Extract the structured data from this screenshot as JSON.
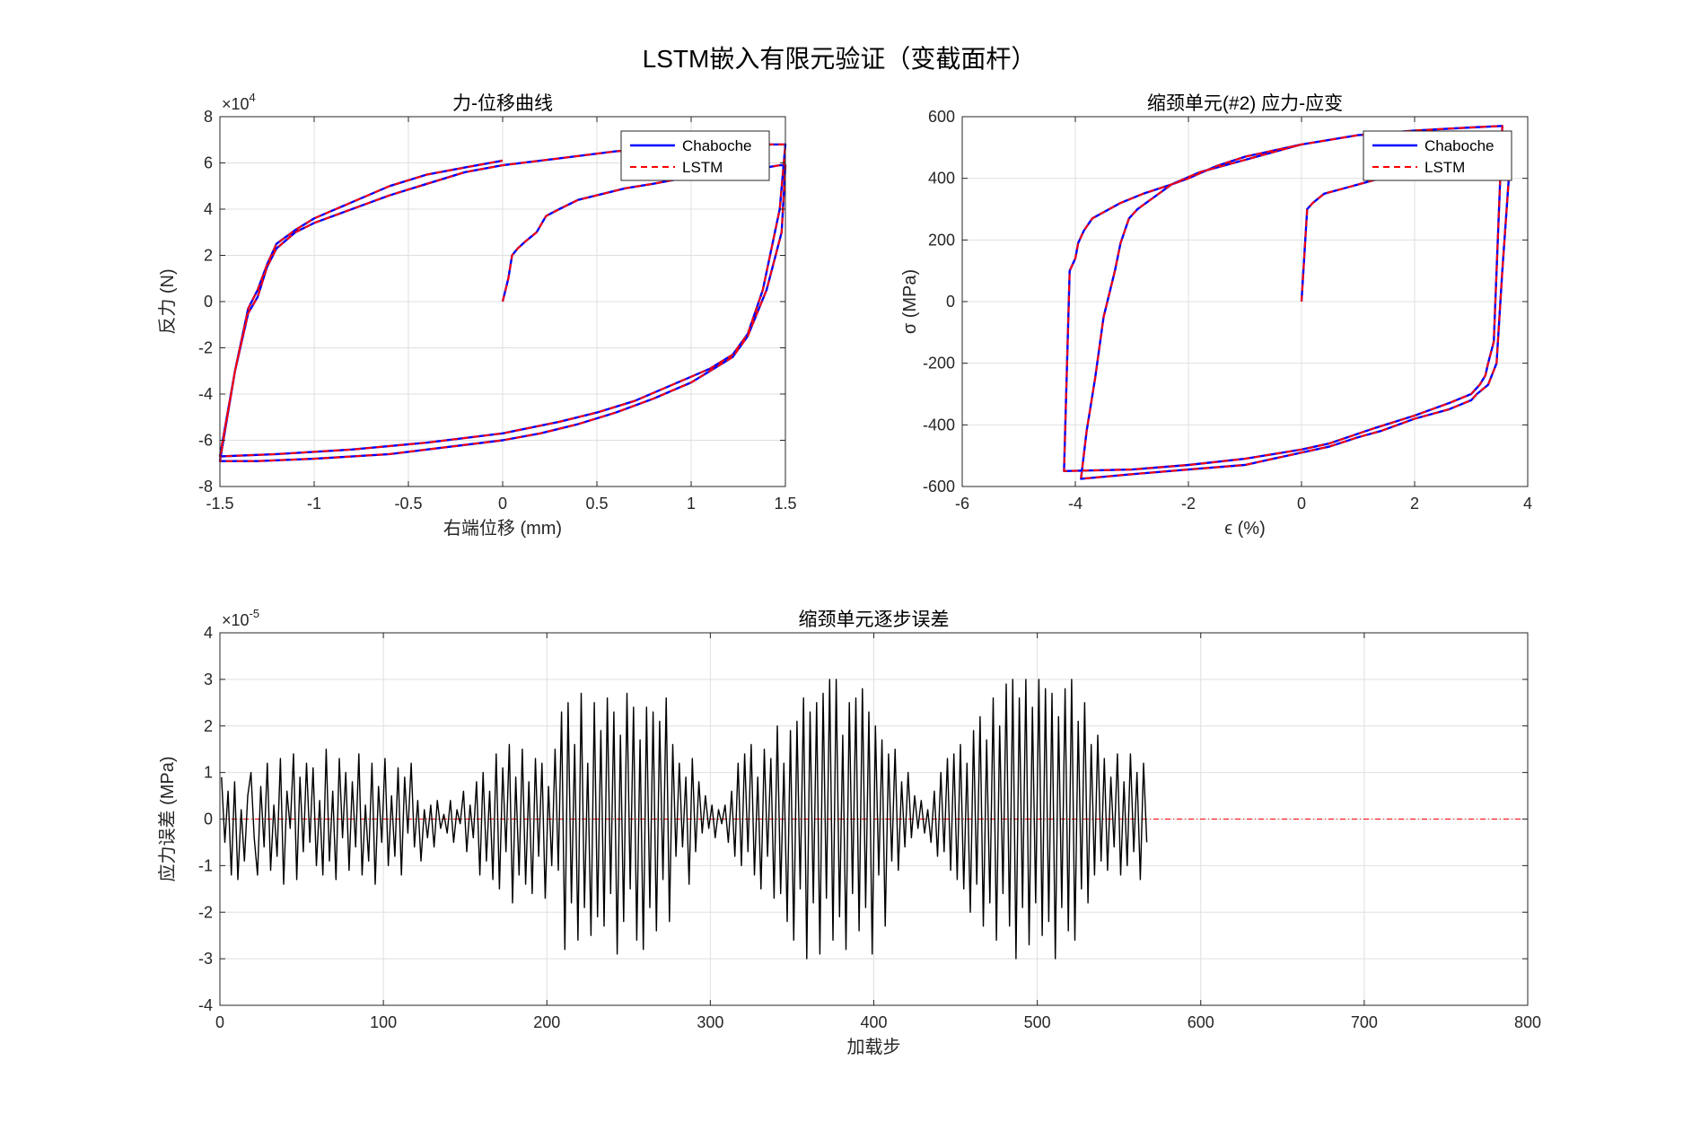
{
  "figure": {
    "title": "LSTM嵌入有限元验证（变截面杆）"
  },
  "chart_data": [
    {
      "id": "fd",
      "type": "line",
      "title": "力-位移曲线",
      "xlabel": "右端位移 (mm)",
      "ylabel": "反力 (N)",
      "y_exponent_label": "×10",
      "y_exponent_power": "4",
      "xlim": [
        -1.5,
        1.5
      ],
      "ylim": [
        -8,
        8
      ],
      "xticks": [
        -1.5,
        -1,
        -0.5,
        0,
        0.5,
        1,
        1.5
      ],
      "xtick_labels": [
        "-1.5",
        "-1",
        "-0.5",
        "0",
        "0.5",
        "1",
        "1.5"
      ],
      "yticks": [
        -8,
        -6,
        -4,
        -2,
        0,
        2,
        4,
        6,
        8
      ],
      "ytick_labels": [
        "-8",
        "-6",
        "-4",
        "-2",
        "0",
        "2",
        "4",
        "6",
        "8"
      ],
      "grid": true,
      "legend": {
        "position": "top-right",
        "entries": [
          "Chaboche",
          "LSTM"
        ]
      },
      "colors": {
        "Chaboche": "#0000ff",
        "LSTM": "#ff0000"
      },
      "series": [
        {
          "name": "Chaboche",
          "x": [
            0,
            0.03,
            0.05,
            0.08,
            0.12,
            0.18,
            0.23,
            0.3,
            0.4,
            0.5,
            0.65,
            0.8,
            1.0,
            1.2,
            1.4,
            1.47,
            1.5,
            1.48,
            1.4,
            1.3,
            1.22,
            1.1,
            1.0,
            0.8,
            0.6,
            0.4,
            0.2,
            0,
            -0.3,
            -0.6,
            -1.0,
            -1.3,
            -1.5,
            -1.42,
            -1.35,
            -1.3,
            -1.25,
            -1.2,
            -1.1,
            -1.0,
            -0.8,
            -0.6,
            -0.4,
            -0.2,
            0,
            0.3,
            0.6,
            1.0,
            1.3,
            1.5,
            1.47,
            1.38,
            1.3,
            1.22,
            1.1,
            0.9,
            0.7,
            0.5,
            0.3,
            0,
            -0.4,
            -0.8,
            -1.2,
            -1.5,
            -1.42,
            -1.35,
            -1.3,
            -1.25,
            -1.2,
            -1.1,
            -1.0,
            -0.8,
            -0.6,
            -0.4,
            -0.2,
            0
          ],
          "y": [
            0,
            1.0,
            2.0,
            2.3,
            2.6,
            3.0,
            3.7,
            4.0,
            4.4,
            4.6,
            4.9,
            5.1,
            5.4,
            5.6,
            5.8,
            5.9,
            5.9,
            3.0,
            0.5,
            -1.5,
            -2.4,
            -3.0,
            -3.5,
            -4.2,
            -4.8,
            -5.3,
            -5.7,
            -6.0,
            -6.3,
            -6.6,
            -6.8,
            -6.9,
            -6.9,
            -3.0,
            -0.5,
            0.2,
            1.5,
            2.3,
            3.0,
            3.4,
            4.0,
            4.6,
            5.1,
            5.6,
            5.9,
            6.2,
            6.5,
            6.7,
            6.8,
            6.8,
            4.0,
            0.5,
            -1.4,
            -2.3,
            -2.9,
            -3.6,
            -4.3,
            -4.8,
            -5.2,
            -5.7,
            -6.1,
            -6.4,
            -6.6,
            -6.7,
            -3.0,
            -0.3,
            0.5,
            1.6,
            2.5,
            3.1,
            3.6,
            4.3,
            5.0,
            5.5,
            5.8,
            6.1
          ]
        },
        {
          "name": "LSTM",
          "x": [
            0,
            0.03,
            0.05,
            0.08,
            0.12,
            0.18,
            0.23,
            0.3,
            0.4,
            0.5,
            0.65,
            0.8,
            1.0,
            1.2,
            1.4,
            1.47,
            1.5,
            1.48,
            1.4,
            1.3,
            1.22,
            1.1,
            1.0,
            0.8,
            0.6,
            0.4,
            0.2,
            0,
            -0.3,
            -0.6,
            -1.0,
            -1.3,
            -1.5,
            -1.42,
            -1.35,
            -1.3,
            -1.25,
            -1.2,
            -1.1,
            -1.0,
            -0.8,
            -0.6,
            -0.4,
            -0.2,
            0,
            0.3,
            0.6,
            1.0,
            1.3,
            1.5,
            1.47,
            1.38,
            1.3,
            1.22,
            1.1,
            0.9,
            0.7,
            0.5,
            0.3,
            0,
            -0.4,
            -0.8,
            -1.2,
            -1.5,
            -1.42,
            -1.35,
            -1.3,
            -1.25,
            -1.2,
            -1.1,
            -1.0,
            -0.8,
            -0.6,
            -0.4,
            -0.2,
            0
          ],
          "y": [
            0,
            1.0,
            2.0,
            2.3,
            2.6,
            3.0,
            3.7,
            4.0,
            4.4,
            4.6,
            4.9,
            5.1,
            5.4,
            5.6,
            5.8,
            5.9,
            5.9,
            3.0,
            0.5,
            -1.5,
            -2.4,
            -3.0,
            -3.5,
            -4.2,
            -4.8,
            -5.3,
            -5.7,
            -6.0,
            -6.3,
            -6.6,
            -6.8,
            -6.9,
            -6.9,
            -3.0,
            -0.5,
            0.2,
            1.5,
            2.3,
            3.0,
            3.4,
            4.0,
            4.6,
            5.1,
            5.6,
            5.9,
            6.2,
            6.5,
            6.7,
            6.8,
            6.8,
            4.0,
            0.5,
            -1.4,
            -2.3,
            -2.9,
            -3.6,
            -4.3,
            -4.8,
            -5.2,
            -5.7,
            -6.1,
            -6.4,
            -6.6,
            -6.7,
            -3.0,
            -0.3,
            0.5,
            1.6,
            2.5,
            3.1,
            3.6,
            4.3,
            5.0,
            5.5,
            5.8,
            6.1
          ]
        }
      ]
    },
    {
      "id": "ss",
      "type": "line",
      "title": "缩颈单元(#2) 应力-应变",
      "xlabel": "ϵ (%)",
      "ylabel": "σ (MPa)",
      "xlim": [
        -6,
        4
      ],
      "ylim": [
        -600,
        600
      ],
      "xticks": [
        -6,
        -4,
        -2,
        0,
        2,
        4
      ],
      "xtick_labels": [
        "-6",
        "-4",
        "-2",
        "0",
        "2",
        "4"
      ],
      "yticks": [
        -600,
        -400,
        -200,
        0,
        200,
        400,
        600
      ],
      "ytick_labels": [
        "-600",
        "-400",
        "-200",
        "0",
        "200",
        "400",
        "600"
      ],
      "grid": true,
      "legend": {
        "position": "top-right",
        "entries": [
          "Chaboche",
          "LSTM"
        ]
      },
      "colors": {
        "Chaboche": "#0000ff",
        "LSTM": "#ff0000"
      },
      "series": [
        {
          "name": "Chaboche",
          "x": [
            0,
            0.1,
            0.2,
            0.4,
            0.8,
            1.2,
            1.6,
            2.0,
            2.5,
            3.0,
            3.5,
            3.7,
            3.55,
            3.45,
            3.3,
            3.1,
            3.0,
            2.6,
            2.0,
            1.4,
            1.0,
            0.5,
            0,
            -0.5,
            -1.0,
            -2.0,
            -3.0,
            -3.9,
            -3.8,
            -3.65,
            -3.5,
            -3.3,
            -3.2,
            -3.05,
            -2.9,
            -2.6,
            -2.3,
            -2.0,
            -1.5,
            -1.0,
            0,
            1.0,
            2.0,
            3.0,
            3.55,
            3.4,
            3.3,
            3.25,
            3.15,
            3.0,
            2.6,
            2.0,
            1.3,
            0.5,
            0,
            -1.0,
            -2.0,
            -3.0,
            -4.2,
            -4.1,
            -4.0,
            -3.95,
            -3.85,
            -3.7,
            -3.5,
            -3.2,
            -2.8,
            -2.3,
            -1.8,
            -1.0,
            0
          ],
          "y": [
            0,
            300,
            320,
            350,
            370,
            390,
            410,
            430,
            445,
            455,
            460,
            490,
            100,
            -200,
            -270,
            -300,
            -320,
            -350,
            -380,
            -420,
            -440,
            -470,
            -490,
            -510,
            -530,
            -545,
            -560,
            -575,
            -420,
            -250,
            -50,
            100,
            190,
            270,
            300,
            340,
            380,
            400,
            440,
            470,
            510,
            540,
            555,
            565,
            570,
            -130,
            -200,
            -240,
            -270,
            -300,
            -330,
            -370,
            -410,
            -460,
            -480,
            -510,
            -530,
            -545,
            -550,
            100,
            140,
            190,
            230,
            270,
            290,
            320,
            350,
            380,
            420,
            460,
            510
          ]
        },
        {
          "name": "LSTM",
          "x": [
            0,
            0.1,
            0.2,
            0.4,
            0.8,
            1.2,
            1.6,
            2.0,
            2.5,
            3.0,
            3.5,
            3.7,
            3.55,
            3.45,
            3.3,
            3.1,
            3.0,
            2.6,
            2.0,
            1.4,
            1.0,
            0.5,
            0,
            -0.5,
            -1.0,
            -2.0,
            -3.0,
            -3.9,
            -3.8,
            -3.65,
            -3.5,
            -3.3,
            -3.2,
            -3.05,
            -2.9,
            -2.6,
            -2.3,
            -2.0,
            -1.5,
            -1.0,
            0,
            1.0,
            2.0,
            3.0,
            3.55,
            3.4,
            3.3,
            3.25,
            3.15,
            3.0,
            2.6,
            2.0,
            1.3,
            0.5,
            0,
            -1.0,
            -2.0,
            -3.0,
            -4.2,
            -4.1,
            -4.0,
            -3.95,
            -3.85,
            -3.7,
            -3.5,
            -3.2,
            -2.8,
            -2.3,
            -1.8,
            -1.0,
            0
          ],
          "y": [
            0,
            300,
            320,
            350,
            370,
            390,
            410,
            430,
            445,
            455,
            460,
            490,
            100,
            -200,
            -270,
            -300,
            -320,
            -350,
            -380,
            -420,
            -440,
            -470,
            -490,
            -510,
            -530,
            -545,
            -560,
            -575,
            -420,
            -250,
            -50,
            100,
            190,
            270,
            300,
            340,
            380,
            400,
            440,
            470,
            510,
            540,
            555,
            565,
            570,
            -130,
            -200,
            -240,
            -270,
            -300,
            -330,
            -370,
            -410,
            -460,
            -480,
            -510,
            -530,
            -545,
            -550,
            100,
            140,
            190,
            230,
            270,
            290,
            320,
            350,
            380,
            420,
            460,
            510
          ]
        }
      ]
    },
    {
      "id": "err",
      "type": "line",
      "title": "缩颈单元逐步误差",
      "xlabel": "加载步",
      "ylabel": "应力误差 (MPa)",
      "y_exponent_label": "×10",
      "y_exponent_power": "-5",
      "xlim": [
        0,
        800
      ],
      "ylim": [
        -4,
        4
      ],
      "xticks": [
        0,
        100,
        200,
        300,
        400,
        500,
        600,
        700,
        800
      ],
      "xtick_labels": [
        "0",
        "100",
        "200",
        "300",
        "400",
        "500",
        "600",
        "700",
        "800"
      ],
      "yticks": [
        -4,
        -3,
        -2,
        -1,
        0,
        1,
        2,
        3,
        4
      ],
      "ytick_labels": [
        "-4",
        "-3",
        "-2",
        "-1",
        "0",
        "1",
        "2",
        "3",
        "4"
      ],
      "grid": true,
      "zero_line": {
        "y": 0,
        "color": "#ff0000",
        "style": "dash-dot"
      },
      "colors": {
        "error": "#000000"
      },
      "series": [
        {
          "name": "",
          "x_start": 1,
          "x_step": 2,
          "y": [
            0.9,
            -0.5,
            0.6,
            -1.2,
            0.8,
            -1.3,
            0.2,
            -0.9,
            0.5,
            1.0,
            -0.4,
            -1.2,
            0.7,
            -0.6,
            1.2,
            -1.1,
            0.3,
            -0.8,
            1.3,
            -1.4,
            0.6,
            -0.2,
            1.4,
            -1.3,
            0.9,
            -0.7,
            1.2,
            -0.5,
            1.1,
            -1.0,
            0.4,
            -1.2,
            1.5,
            -0.9,
            0.6,
            -1.3,
            1.3,
            -0.4,
            1.0,
            -1.1,
            0.8,
            -0.6,
            1.4,
            -1.2,
            0.3,
            -0.9,
            1.2,
            -1.4,
            0.7,
            -0.5,
            1.3,
            -1.0,
            0.5,
            -0.8,
            1.1,
            -1.2,
            0.9,
            -0.3,
            1.2,
            -0.6,
            0.4,
            -0.9,
            0.2,
            -0.4,
            0.3,
            -0.6,
            0.4,
            -0.2,
            0.1,
            -0.3,
            0.4,
            -0.5,
            0.2,
            -0.1,
            0.6,
            -0.7,
            0.3,
            -0.4,
            0.8,
            -1.2,
            1.0,
            -0.9,
            0.6,
            -1.3,
            1.4,
            -1.5,
            1.1,
            -0.7,
            1.6,
            -1.8,
            0.9,
            -1.2,
            1.5,
            -1.4,
            0.8,
            -1.6,
            1.3,
            -0.8,
            1.2,
            -1.7,
            0.7,
            -1.0,
            1.5,
            -1.1,
            2.3,
            -2.8,
            2.5,
            -1.8,
            1.6,
            -2.6,
            2.7,
            -1.9,
            1.2,
            -2.5,
            2.5,
            -2.1,
            1.9,
            -2.3,
            2.6,
            -1.6,
            2.3,
            -2.9,
            1.8,
            -2.2,
            2.7,
            -1.5,
            2.4,
            -2.6,
            1.7,
            -2.8,
            2.4,
            -1.9,
            2.3,
            -2.4,
            2.1,
            -1.3,
            2.6,
            -2.2,
            1.6,
            -0.8,
            1.2,
            -0.6,
            0.9,
            -1.4,
            1.3,
            -0.7,
            0.8,
            -0.3,
            0.5,
            -0.2,
            0.3,
            -0.4,
            0.2,
            -0.1,
            0.3,
            -0.5,
            0.6,
            -0.8,
            1.2,
            -1.0,
            1.4,
            -0.7,
            1.6,
            -1.2,
            0.9,
            -1.5,
            1.5,
            -0.8,
            1.3,
            -1.7,
            2.0,
            -1.6,
            1.2,
            -2.2,
            1.9,
            -2.6,
            2.1,
            -1.5,
            2.6,
            -3.0,
            2.3,
            -1.8,
            2.5,
            -2.9,
            2.7,
            -1.7,
            3.0,
            -2.6,
            3.0,
            -2.1,
            1.8,
            -2.8,
            2.5,
            -1.6,
            2.6,
            -2.4,
            2.8,
            -1.9,
            2.3,
            -2.9,
            2.0,
            -1.2,
            1.7,
            -2.3,
            1.4,
            -0.9,
            1.5,
            -1.1,
            0.8,
            -0.6,
            1.0,
            -0.4,
            0.5,
            -0.2,
            0.4,
            -0.3,
            0.2,
            -0.5,
            0.6,
            -0.8,
            1.0,
            -0.7,
            1.3,
            -1.1,
            1.4,
            -1.3,
            1.6,
            -1.5,
            1.2,
            -2.0,
            1.9,
            -1.4,
            2.2,
            -2.3,
            1.7,
            -1.8,
            2.6,
            -2.6,
            2.0,
            -1.6,
            2.9,
            -2.3,
            3.0,
            -3.0,
            2.6,
            -1.9,
            3.0,
            -2.7,
            2.4,
            -1.8,
            3.0,
            -2.5,
            2.8,
            -2.2,
            2.7,
            -3.0,
            2.2,
            -1.9,
            2.8,
            -2.4,
            3.0,
            -2.6,
            2.1,
            -1.5,
            2.5,
            -1.8,
            1.6,
            -1.2,
            1.8,
            -0.9,
            1.3,
            -1.1,
            0.9,
            -0.6,
            1.4,
            -1.2,
            0.8,
            -1.0,
            1.4,
            -0.7,
            1.0,
            -1.3,
            1.2,
            -0.5
          ]
        }
      ]
    }
  ]
}
